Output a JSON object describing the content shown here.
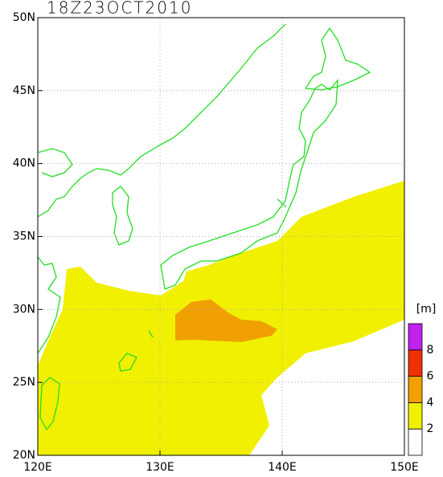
{
  "map": {
    "title": "18Z23OCT2010",
    "xlim": [
      120,
      150
    ],
    "ylim": [
      20,
      50
    ],
    "xticks": [
      {
        "value": 120,
        "label": "120E"
      },
      {
        "value": 130,
        "label": "130E"
      },
      {
        "value": 140,
        "label": "140E"
      },
      {
        "value": 150,
        "label": "150E"
      }
    ],
    "yticks": [
      {
        "value": 20,
        "label": "20N"
      },
      {
        "value": 25,
        "label": "25N"
      },
      {
        "value": 30,
        "label": "30N"
      },
      {
        "value": 35,
        "label": "35N"
      },
      {
        "value": 40,
        "label": "40N"
      },
      {
        "value": 45,
        "label": "45N"
      },
      {
        "value": 50,
        "label": "50N"
      }
    ],
    "grid": true,
    "legend": {
      "unit": "[m]",
      "clim": [
        0,
        10
      ],
      "levels": [
        2,
        4,
        6,
        8
      ],
      "colors": [
        "#ffffff",
        "#f0f000",
        "#f0a000",
        "#f03000",
        "#c020f0"
      ]
    }
  }
}
